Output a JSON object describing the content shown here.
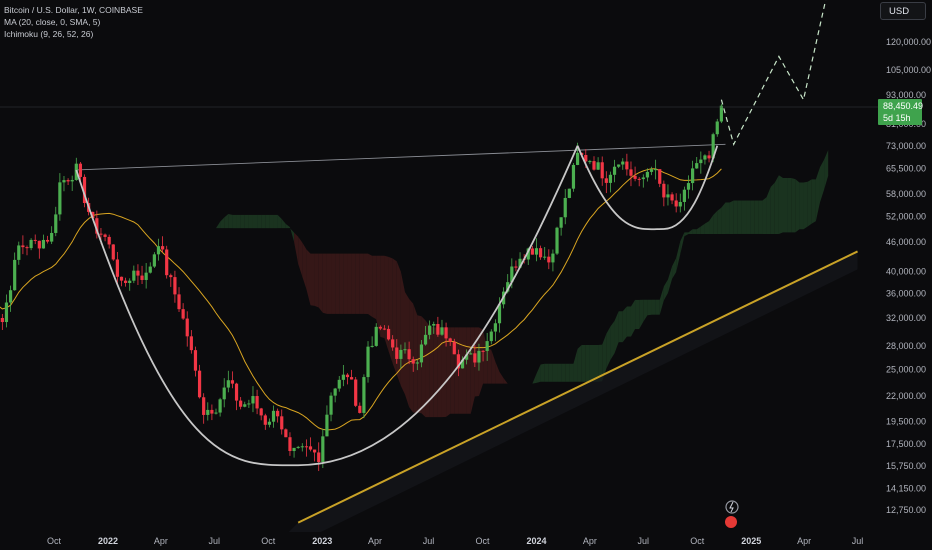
{
  "header": {
    "symbol_line": "Bitcoin / U.S. Dollar, 1W, COINBASE",
    "indicator_ma": "MA (20, close, 0, SMA, 5)",
    "indicator_ichimoku": "Ichimoku (9, 26, 52, 26)",
    "currency_button": "USD"
  },
  "last_price": {
    "value": "88,450.49",
    "countdown": "5d 15h"
  },
  "colors": {
    "up": "#4caf50",
    "down": "#f23645",
    "ma": "#d9a521",
    "trendline": "#c9a227",
    "arc": "#c7c7c7",
    "cloud_bull": "#1d3b23",
    "cloud_bear": "#3d1a1a",
    "background": "#0b0b0d"
  },
  "chart_data": {
    "type": "candlestick",
    "title": "Bitcoin / U.S. Dollar, 1W, COINBASE",
    "y_scale": "log",
    "ylim": [
      12000,
      160000
    ],
    "y_ticks": [
      "120,000.00",
      "105,000.00",
      "93,000.00",
      "81,000.00",
      "73,000.00",
      "65,500.00",
      "58,000.00",
      "52,000.00",
      "46,000.00",
      "40,000.00",
      "36,000.00",
      "32,000.00",
      "28,000.00",
      "25,000.00",
      "22,000.00",
      "19,500.00",
      "17,500.00",
      "15,750.00",
      "14,150.00",
      "12,750.00"
    ],
    "x_ticks": [
      {
        "label": "Oct",
        "date": "2021-10-01",
        "bold": false
      },
      {
        "label": "2022",
        "date": "2022-01-01",
        "bold": true
      },
      {
        "label": "Apr",
        "date": "2022-04-01",
        "bold": false
      },
      {
        "label": "Jul",
        "date": "2022-07-01",
        "bold": false
      },
      {
        "label": "Oct",
        "date": "2022-10-01",
        "bold": false
      },
      {
        "label": "2023",
        "date": "2023-01-01",
        "bold": true
      },
      {
        "label": "Apr",
        "date": "2023-04-01",
        "bold": false
      },
      {
        "label": "Jul",
        "date": "2023-07-01",
        "bold": false
      },
      {
        "label": "Oct",
        "date": "2023-10-01",
        "bold": false
      },
      {
        "label": "2024",
        "date": "2024-01-01",
        "bold": true
      },
      {
        "label": "Apr",
        "date": "2024-04-01",
        "bold": false
      },
      {
        "label": "Jul",
        "date": "2024-07-01",
        "bold": false
      },
      {
        "label": "Oct",
        "date": "2024-10-01",
        "bold": false
      },
      {
        "label": "2025",
        "date": "2025-01-01",
        "bold": true
      },
      {
        "label": "Apr",
        "date": "2025-04-01",
        "bold": false
      },
      {
        "label": "Jul",
        "date": "2025-07-01",
        "bold": false
      }
    ],
    "weekly_close": [
      [
        "2021-06-07",
        36000
      ],
      [
        "2021-07-05",
        31500
      ],
      [
        "2021-08-02",
        45000
      ],
      [
        "2021-09-06",
        46000
      ],
      [
        "2021-09-27",
        47500
      ],
      [
        "2021-10-11",
        61000
      ],
      [
        "2021-11-08",
        65000
      ],
      [
        "2021-11-22",
        57000
      ],
      [
        "2021-12-06",
        50000
      ],
      [
        "2021-12-27",
        47000
      ],
      [
        "2022-01-10",
        43000
      ],
      [
        "2022-01-24",
        37000
      ],
      [
        "2022-02-14",
        40000
      ],
      [
        "2022-03-07",
        39000
      ],
      [
        "2022-03-28",
        46500
      ],
      [
        "2022-04-11",
        40000
      ],
      [
        "2022-05-02",
        34000
      ],
      [
        "2022-05-16",
        29500
      ],
      [
        "2022-06-13",
        20500
      ],
      [
        "2022-07-04",
        21000
      ],
      [
        "2022-07-25",
        23500
      ],
      [
        "2022-08-15",
        21000
      ],
      [
        "2022-09-05",
        21500
      ],
      [
        "2022-09-26",
        19500
      ],
      [
        "2022-10-17",
        20500
      ],
      [
        "2022-11-07",
        16500
      ],
      [
        "2022-12-05",
        17000
      ],
      [
        "2022-12-26",
        16600
      ],
      [
        "2023-01-16",
        22500
      ],
      [
        "2023-02-13",
        24500
      ],
      [
        "2023-03-06",
        20500
      ],
      [
        "2023-03-20",
        28000
      ],
      [
        "2023-04-10",
        30500
      ],
      [
        "2023-05-08",
        27000
      ],
      [
        "2023-06-12",
        26500
      ],
      [
        "2023-07-03",
        30500
      ],
      [
        "2023-08-07",
        29500
      ],
      [
        "2023-08-21",
        26000
      ],
      [
        "2023-09-18",
        26500
      ],
      [
        "2023-10-16",
        30000
      ],
      [
        "2023-11-06",
        37000
      ],
      [
        "2023-12-04",
        43500
      ],
      [
        "2024-01-01",
        45000
      ],
      [
        "2024-01-22",
        42000
      ],
      [
        "2024-02-12",
        52000
      ],
      [
        "2024-03-11",
        69500
      ],
      [
        "2024-04-01",
        68500
      ],
      [
        "2024-04-29",
        63000
      ],
      [
        "2024-05-20",
        69000
      ],
      [
        "2024-06-24",
        60500
      ],
      [
        "2024-07-15",
        67000
      ],
      [
        "2024-08-05",
        57000
      ],
      [
        "2024-09-02",
        54000
      ],
      [
        "2024-09-23",
        65500
      ],
      [
        "2024-10-21",
        68500
      ],
      [
        "2024-11-11",
        88450
      ]
    ],
    "series": [
      {
        "name": "MA (20, close, 0, SMA, 5)",
        "type": "line"
      },
      {
        "name": "Ichimoku (9, 26, 52, 26)",
        "type": "cloud"
      }
    ],
    "annotations": [
      {
        "type": "resistance_line",
        "from": [
          "2021-11-08",
          65000
        ],
        "to": [
          "2024-11-18",
          73500
        ]
      },
      {
        "type": "rising_trendline",
        "from": [
          "2022-11-21",
          12000
        ],
        "to": [
          "2025-07-01",
          44000
        ]
      },
      {
        "type": "cup_arc",
        "from": [
          "2021-11-08",
          65000
        ],
        "bottom": [
          "2022-11-21",
          15800
        ],
        "to": [
          "2024-03-11",
          73000
        ]
      },
      {
        "type": "handle_arc",
        "from": [
          "2024-03-11",
          73000
        ],
        "bottom": [
          "2024-08-05",
          49000
        ],
        "to": [
          "2024-11-04",
          73000
        ]
      },
      {
        "type": "projection_path",
        "points": [
          [
            "2024-11-11",
            91000
          ],
          [
            "2024-12-02",
            73500
          ],
          [
            "2025-02-17",
            112000
          ],
          [
            "2025-03-31",
            91000
          ],
          [
            "2025-05-12",
            155000
          ]
        ]
      }
    ]
  }
}
